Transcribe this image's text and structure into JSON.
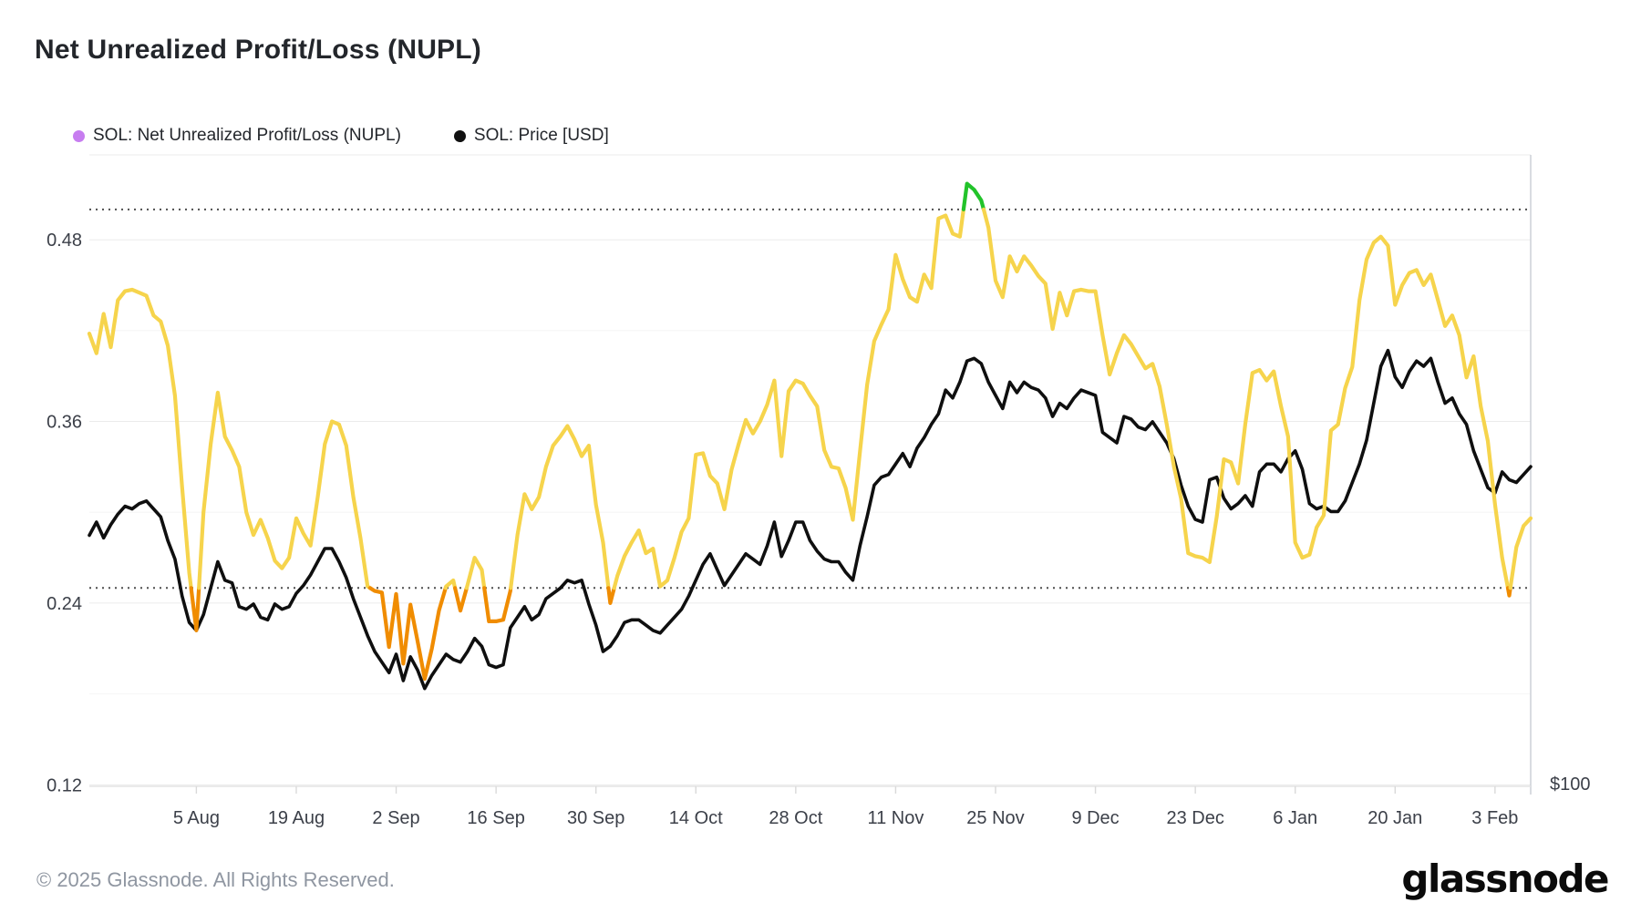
{
  "page": {
    "title": "Net Unrealized Profit/Loss (NUPL)"
  },
  "legend": {
    "items": [
      {
        "label": "SOL: Net Unrealized Profit/Loss (NUPL)",
        "color": "#c77df0"
      },
      {
        "label": "SOL: Price [USD]",
        "color": "#111111"
      }
    ]
  },
  "footer": {
    "copyright": "© 2025 Glassnode. All Rights Reserved.",
    "brand": "glassnode"
  },
  "chart_data": {
    "type": "line",
    "title": "Net Unrealized Profit/Loss (NUPL)",
    "start_date": "2024-07-21",
    "end_date": "2025-02-08",
    "grid": "horizontal-only",
    "legend_position": "top-left",
    "x_tick_labels": [
      "5 Aug",
      "19 Aug",
      "2 Sep",
      "16 Sep",
      "30 Sep",
      "14 Oct",
      "28 Oct",
      "11 Nov",
      "25 Nov",
      "9 Dec",
      "23 Dec",
      "6 Jan",
      "20 Jan",
      "3 Feb"
    ],
    "x_tick_day_index": [
      15,
      29,
      43,
      57,
      71,
      85,
      99,
      113,
      127,
      141,
      155,
      169,
      183,
      197
    ],
    "y_axis_left": {
      "tick_labels": [
        "0.12",
        "0.24",
        "0.36",
        "0.48"
      ],
      "tick_values": [
        0.12,
        0.24,
        0.36,
        0.48
      ],
      "minor_grid_values": [
        0.18,
        0.3,
        0.42
      ],
      "range": [
        0.119,
        0.536
      ]
    },
    "y_axis_right": {
      "tick_labels": [
        "$100"
      ],
      "tick_values_usd": [
        100
      ],
      "range_usd": [
        99,
        338
      ]
    },
    "thresholds": {
      "dotted_line_values": [
        0.25,
        0.5
      ],
      "band_colors": {
        "below_0_25": "#f08c00",
        "from_0_25_to_0_5": "#f6d44c",
        "above_0_5": "#22c32a"
      }
    },
    "colors": {
      "price_line": "#0f0f0f",
      "grid_major": "#ebebeb",
      "grid_minor": "#f6f6f6",
      "axis_text": "#3c4049",
      "dotted": "#4f4f4f",
      "border": "#c9cdd4"
    },
    "series": [
      {
        "name": "SOL: Net Unrealized Profit/Loss (NUPL)",
        "unit": "ratio",
        "values": [
          0.418,
          0.405,
          0.431,
          0.409,
          0.44,
          0.446,
          0.447,
          0.445,
          0.443,
          0.43,
          0.426,
          0.41,
          0.377,
          0.317,
          0.26,
          0.222,
          0.3,
          0.345,
          0.379,
          0.35,
          0.341,
          0.33,
          0.3,
          0.285,
          0.295,
          0.283,
          0.268,
          0.263,
          0.27,
          0.296,
          0.286,
          0.278,
          0.31,
          0.345,
          0.36,
          0.358,
          0.344,
          0.31,
          0.283,
          0.251,
          0.248,
          0.247,
          0.211,
          0.246,
          0.2,
          0.239,
          0.215,
          0.19,
          0.21,
          0.235,
          0.251,
          0.255,
          0.235,
          0.252,
          0.27,
          0.262,
          0.228,
          0.228,
          0.229,
          0.248,
          0.285,
          0.312,
          0.302,
          0.31,
          0.33,
          0.344,
          0.35,
          0.357,
          0.348,
          0.337,
          0.344,
          0.305,
          0.28,
          0.24,
          0.258,
          0.271,
          0.28,
          0.288,
          0.273,
          0.276,
          0.251,
          0.255,
          0.27,
          0.287,
          0.296,
          0.338,
          0.339,
          0.324,
          0.319,
          0.302,
          0.328,
          0.345,
          0.361,
          0.352,
          0.36,
          0.371,
          0.387,
          0.337,
          0.38,
          0.387,
          0.385,
          0.377,
          0.37,
          0.341,
          0.33,
          0.329,
          0.316,
          0.295,
          0.34,
          0.384,
          0.413,
          0.424,
          0.434,
          0.47,
          0.454,
          0.442,
          0.439,
          0.457,
          0.448,
          0.494,
          0.496,
          0.484,
          0.482,
          0.517,
          0.513,
          0.506,
          0.488,
          0.453,
          0.442,
          0.469,
          0.459,
          0.469,
          0.463,
          0.456,
          0.451,
          0.421,
          0.445,
          0.43,
          0.446,
          0.447,
          0.446,
          0.446,
          0.417,
          0.391,
          0.405,
          0.417,
          0.411,
          0.403,
          0.395,
          0.398,
          0.383,
          0.358,
          0.33,
          0.309,
          0.273,
          0.271,
          0.27,
          0.267,
          0.297,
          0.335,
          0.333,
          0.319,
          0.358,
          0.392,
          0.394,
          0.387,
          0.393,
          0.37,
          0.35,
          0.28,
          0.27,
          0.272,
          0.29,
          0.298,
          0.354,
          0.358,
          0.382,
          0.396,
          0.44,
          0.467,
          0.478,
          0.482,
          0.476,
          0.437,
          0.45,
          0.458,
          0.46,
          0.45,
          0.457,
          0.44,
          0.423,
          0.43,
          0.417,
          0.389,
          0.403,
          0.37,
          0.347,
          0.305,
          0.27,
          0.245,
          0.277,
          0.291,
          0.296
        ]
      },
      {
        "name": "SOL: Price [USD]",
        "unit": "USD",
        "values": [
          194,
          199,
          193,
          198,
          202,
          205,
          204,
          206,
          207,
          204,
          201,
          192,
          185,
          171,
          161,
          158,
          164,
          174,
          184,
          177,
          176,
          167,
          166,
          168,
          163,
          162,
          168,
          166,
          167,
          172,
          175,
          179,
          184,
          189,
          189,
          184,
          178,
          170,
          163,
          156,
          150,
          146,
          142,
          149,
          139,
          148,
          143,
          136,
          141,
          145,
          149,
          147,
          146,
          150,
          155,
          152,
          145,
          144,
          145,
          159,
          163,
          167,
          162,
          164,
          170,
          172,
          174,
          177,
          176,
          177,
          168,
          160,
          150,
          152,
          156,
          161,
          162,
          162,
          160,
          158,
          157,
          160,
          163,
          166,
          171,
          177,
          183,
          187,
          181,
          175,
          179,
          183,
          187,
          185,
          183,
          190,
          199,
          186,
          192,
          199,
          199,
          192,
          188,
          185,
          184,
          184,
          180,
          177,
          190,
          201,
          213,
          216,
          217,
          221,
          225,
          220,
          227,
          231,
          236,
          240,
          249,
          246,
          252,
          260,
          261,
          259,
          252,
          247,
          242,
          252,
          248,
          252,
          250,
          249,
          246,
          239,
          244,
          242,
          246,
          249,
          248,
          247,
          233,
          231,
          229,
          239,
          238,
          235,
          234,
          237,
          233,
          229,
          223,
          213,
          205,
          200,
          199,
          215,
          216,
          208,
          204,
          206,
          209,
          205,
          218,
          221,
          221,
          218,
          223,
          226,
          219,
          206,
          204,
          205,
          203,
          203,
          207,
          214,
          221,
          230,
          244,
          258,
          264,
          254,
          250,
          256,
          260,
          258,
          261,
          252,
          244,
          246,
          240,
          236,
          226,
          219,
          212,
          210,
          218,
          215,
          214,
          217,
          220
        ]
      }
    ]
  }
}
